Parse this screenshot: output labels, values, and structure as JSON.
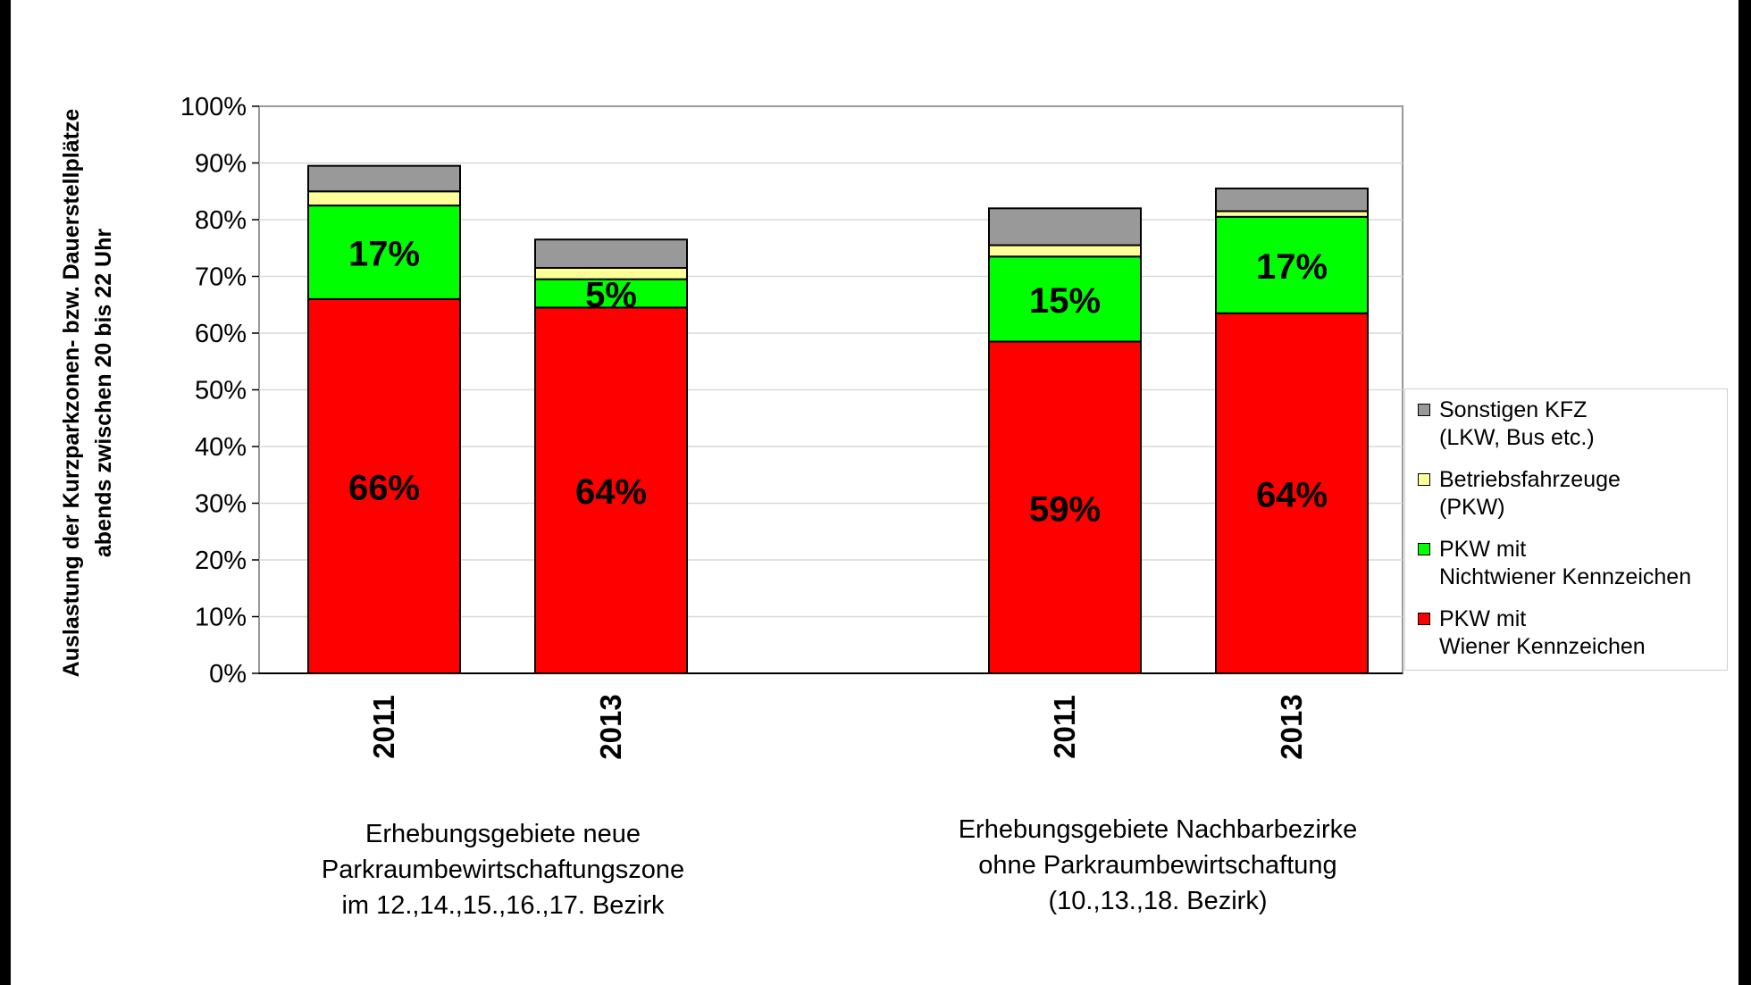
{
  "chart_data": {
    "type": "bar",
    "stacked": true,
    "y_axis_label_lines": [
      "Auslastung der Kurzparkzonen- bzw. Dauerstellplätze",
      "abends zwischen 20 bis 22 Uhr"
    ],
    "ylim": [
      0,
      100
    ],
    "y_ticks": [
      "0%",
      "10%",
      "20%",
      "30%",
      "40%",
      "50%",
      "60%",
      "70%",
      "80%",
      "90%",
      "100%"
    ],
    "categories": [
      "2011",
      "2013",
      "2011",
      "2013"
    ],
    "groups": [
      {
        "label_lines": [
          "Erhebungsgebiete neue",
          "Parkraumbewirtschaftungszone",
          "im 12.,14.,15.,16.,17. Bezirk"
        ],
        "categories": [
          "2011",
          "2013"
        ]
      },
      {
        "label_lines": [
          "Erhebungsgebiete Nachbarbezirke",
          "ohne Parkraumbewirtschaftung",
          "(10.,13.,18. Bezirk)"
        ],
        "categories": [
          "2011",
          "2013"
        ]
      }
    ],
    "series": [
      {
        "name": "PKW mit Wiener Kennzeichen",
        "color": "#ff0000",
        "values": [
          66,
          64.5,
          58.5,
          63.5
        ],
        "labels": [
          "66%",
          "64%",
          "59%",
          "64%"
        ]
      },
      {
        "name": "PKW mit Nichtwiener Kennzeichen",
        "color": "#00ff00",
        "values": [
          16.5,
          5,
          15,
          17
        ],
        "labels": [
          "17%",
          "5%",
          "15%",
          "17%"
        ]
      },
      {
        "name": "Betriebsfahrzeuge (PKW)",
        "color": "#ffff99",
        "values": [
          2.5,
          2,
          2,
          1
        ],
        "labels": [
          "",
          "",
          "",
          ""
        ]
      },
      {
        "name": "Sonstigen KFZ (LKW, Bus etc.)",
        "color": "#999999",
        "values": [
          4.5,
          5,
          6.5,
          4
        ],
        "labels": [
          "",
          "",
          "",
          ""
        ]
      }
    ],
    "legend": {
      "position": "right",
      "items": [
        {
          "lines": [
            "Sonstigen KFZ",
            "(LKW, Bus etc.)"
          ],
          "color": "#999999"
        },
        {
          "lines": [
            "Betriebsfahrzeuge",
            "(PKW)"
          ],
          "color": "#ffff99"
        },
        {
          "lines": [
            "PKW mit",
            "Nichtwiener Kennzeichen"
          ],
          "color": "#00ff00"
        },
        {
          "lines": [
            "PKW mit",
            "Wiener Kennzeichen"
          ],
          "color": "#ff0000"
        }
      ]
    },
    "grid": true
  }
}
